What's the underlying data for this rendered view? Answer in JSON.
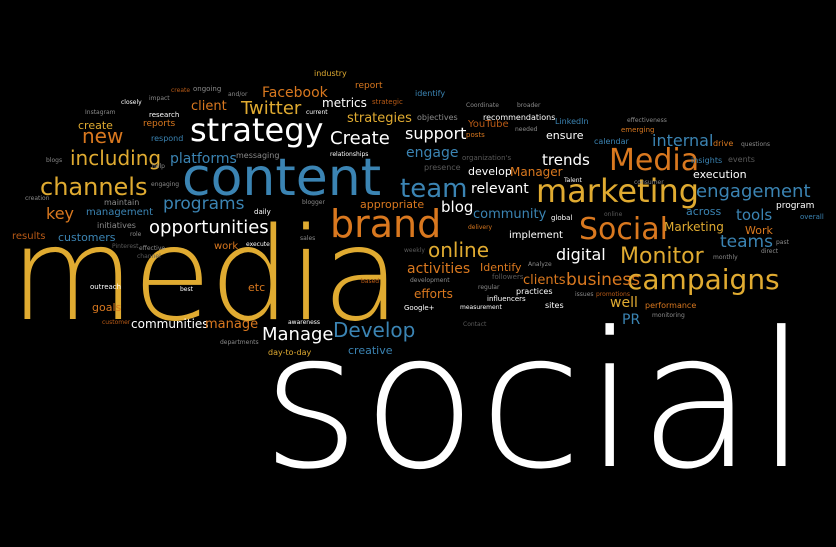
{
  "image": {
    "type": "word cloud",
    "background_color": "#000000"
  },
  "palette": {
    "orange": "#d9781f",
    "white": "#ffffff",
    "gold": "#e0ab31",
    "blue": "#3b84b3",
    "teal": "#2f7fa6",
    "gray": "#8a8a8a",
    "dark_gray": "#5a5a5a",
    "rust": "#b85a16"
  },
  "words": {
    "media": "media",
    "social": "social",
    "content": "content",
    "strategy": "strategy",
    "brand": "brand",
    "marketing": "marketing",
    "campaigns": "campaigns",
    "Media": "Media",
    "Social": "Social",
    "team": "team",
    "channels": "channels",
    "including": "including",
    "opportunities": "opportunities",
    "Monitor": "Monitor",
    "Develop": "Develop",
    "Manage": "Manage",
    "online": "online",
    "engagement": "engagement",
    "Create": "Create",
    "Twitter": "Twitter",
    "new": "new",
    "programs": "programs",
    "business": "business",
    "teams": "teams",
    "Facebook": "Facebook",
    "support": "support",
    "internal": "internal",
    "digital": "digital",
    "trends": "trends",
    "relevant": "relevant",
    "activities": "activities",
    "tools": "tools",
    "platforms": "platforms",
    "key": "key",
    "engage": "engage",
    "blog": "blog",
    "community": "community",
    "communities": "communities",
    "manage": "manage",
    "strategies": "strategies",
    "client": "client",
    "clients": "clients",
    "creative": "creative",
    "efforts": "efforts",
    "well": "well",
    "PR": "PR",
    "metrics": "metrics",
    "create": "create",
    "Identify": "Identify",
    "implement": "implement",
    "appropriate": "appropriate",
    "develop": "develop",
    "Manager": "Manager",
    "ensure": "ensure",
    "Marketing": "Marketing",
    "Work": "Work",
    "execution": "execution",
    "across": "across",
    "program": "program",
    "customers": "customers",
    "management": "management",
    "results": "results",
    "goals": "goals",
    "etc": "etc",
    "work": "work",
    "day_to_day": "day-to-day",
    "reports": "reports",
    "report": "report",
    "industry": "industry",
    "identify": "identify",
    "objectives": "objectives",
    "recommendations": "recommendations",
    "YouTube": "YouTube",
    "LinkedIn": "LinkedIn",
    "calendar": "calendar",
    "emerging": "emerging",
    "drive": "drive",
    "insights": "insights",
    "events": "events",
    "posts": "posts",
    "presence": "presence",
    "relationships": "relationships",
    "messaging": "messaging",
    "respond": "respond",
    "research": "research",
    "Instagram": "Instagram",
    "initiatives": "initiatives",
    "maintain": "maintain",
    "engaging": "engaging",
    "outreach": "outreach",
    "best": "best",
    "execute": "execute",
    "awareness": "awareness",
    "sales": "sales",
    "delivery": "delivery",
    "Google_plus": "Google+",
    "measurement": "measurement",
    "influencers": "influencers",
    "practices": "practices",
    "sites": "sites",
    "performance": "performance",
    "global": "global",
    "followers": "followers",
    "regular": "regular",
    "development": "development",
    "strategic": "strategic",
    "current": "current",
    "closely": "closely",
    "impact": "impact",
    "ongoing": "ongoing",
    "and_or": "and/or",
    "help": "help",
    "blogs": "blogs",
    "creation": "creation",
    "Pinterest": "Pinterest",
    "role": "role",
    "customer": "customer",
    "departments": "departments",
    "monitoring": "monitoring",
    "promotions": "promotions",
    "Analyze": "Analyze",
    "needed": "needed",
    "broader": "broader",
    "Talent": "Talent",
    "monthly": "monthly",
    "direct": "direct",
    "past": "past",
    "overall": "overall",
    "questions": "questions",
    "consumer": "consumer",
    "effectiveness": "effectiveness",
    "blogger": "blogger",
    "daily": "daily",
    "weekly": "weekly",
    "based": "based",
    "issues": "issues",
    "Coordinate": "Coordinate",
    "organization_s": "organization's",
    "Contact": "Contact",
    "online_small": "online",
    "effective": "effective",
    "channel": "channel",
    "create_small": "create"
  }
}
